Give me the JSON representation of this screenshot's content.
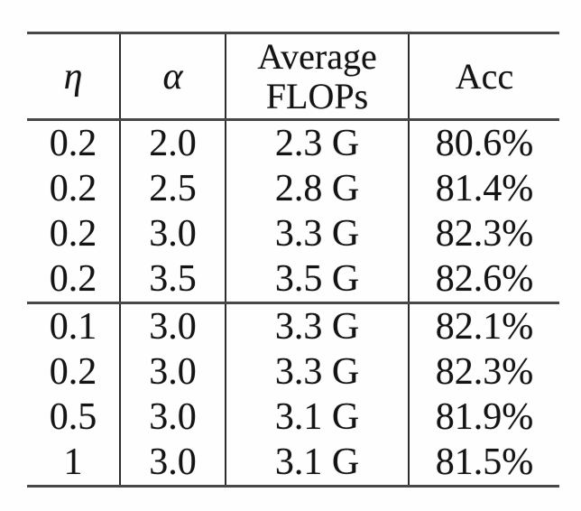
{
  "table": {
    "headers": {
      "eta": "η",
      "alpha": "α",
      "flops": "Average\nFLOPs",
      "acc": "Acc"
    },
    "rows": [
      {
        "eta": "0.2",
        "alpha": "2.0",
        "flops": "2.3 G",
        "acc": "80.6%"
      },
      {
        "eta": "0.2",
        "alpha": "2.5",
        "flops": "2.8 G",
        "acc": "81.4%"
      },
      {
        "eta": "0.2",
        "alpha": "3.0",
        "flops": "3.3 G",
        "acc": "82.3%"
      },
      {
        "eta": "0.2",
        "alpha": "3.5",
        "flops": "3.5 G",
        "acc": "82.6%"
      },
      {
        "eta": "0.1",
        "alpha": "3.0",
        "flops": "3.3 G",
        "acc": "82.1%"
      },
      {
        "eta": "0.2",
        "alpha": "3.0",
        "flops": "3.3 G",
        "acc": "82.3%"
      },
      {
        "eta": "0.5",
        "alpha": "3.0",
        "flops": "3.1 G",
        "acc": "81.9%"
      },
      {
        "eta": "1",
        "alpha": "3.0",
        "flops": "3.1 G",
        "acc": "81.5%"
      }
    ],
    "colors": {
      "rule": "#474747",
      "divider": "#2d2d2d",
      "text": "#141414",
      "background": "#fefefe"
    }
  }
}
